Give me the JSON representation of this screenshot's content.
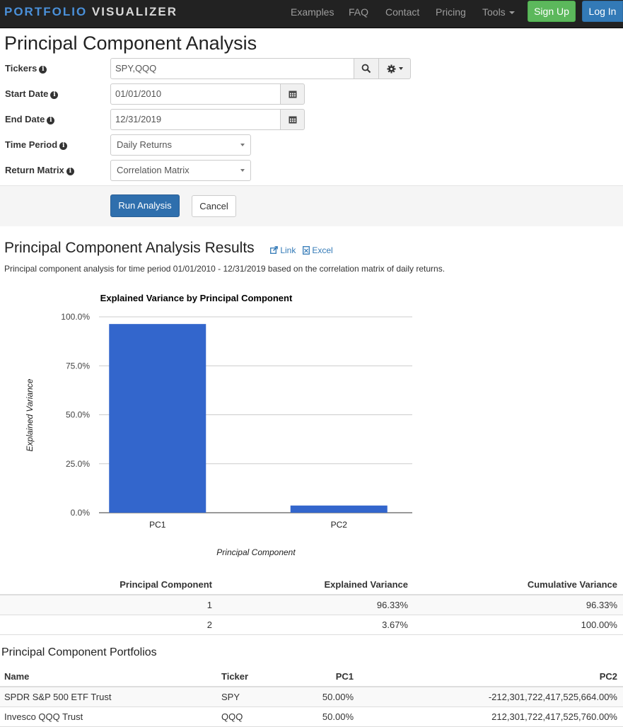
{
  "navbar": {
    "brand_part1": "PORTFOLIO",
    "brand_part2": "VISUALIZER",
    "links": [
      "Examples",
      "FAQ",
      "Contact",
      "Pricing",
      "Tools"
    ],
    "signup": "Sign Up",
    "login": "Log In",
    "colors": {
      "signup": "#5cb85c",
      "login": "#337ab7",
      "bar": "#222222"
    }
  },
  "page_title": "Principal Component Analysis",
  "form": {
    "tickers": {
      "label": "Tickers",
      "value": "SPY,QQQ"
    },
    "start_date": {
      "label": "Start Date",
      "value": "01/01/2010"
    },
    "end_date": {
      "label": "End Date",
      "value": "12/31/2019"
    },
    "time_period": {
      "label": "Time Period",
      "value": "Daily Returns"
    },
    "return_matrix": {
      "label": "Return Matrix",
      "value": "Correlation Matrix"
    },
    "run_button": "Run Analysis",
    "cancel_button": "Cancel",
    "icons": {
      "search": "search-icon",
      "settings": "gear-icon",
      "calendar": "calendar-icon",
      "info": "info-icon"
    }
  },
  "results": {
    "title": "Principal Component Analysis Results",
    "link_label": "Link",
    "excel_label": "Excel",
    "description": "Principal component analysis for time period 01/01/2010 - 12/31/2019 based on the correlation matrix of daily returns."
  },
  "chart_data": {
    "type": "bar",
    "title": "Explained Variance by Principal Component",
    "xlabel": "Principal Component",
    "ylabel": "Explained Variance",
    "categories": [
      "PC1",
      "PC2"
    ],
    "values": [
      96.33,
      3.67
    ],
    "ylim": [
      0,
      100
    ],
    "yticks": [
      0,
      25,
      50,
      75,
      100
    ],
    "ytick_labels": [
      "0.0%",
      "25.0%",
      "50.0%",
      "75.0%",
      "100.0%"
    ],
    "grid": true,
    "bar_color": "#3366cc"
  },
  "variance_table": {
    "headers": [
      "Principal Component",
      "Explained Variance",
      "Cumulative Variance"
    ],
    "rows": [
      [
        "1",
        "96.33%",
        "96.33%"
      ],
      [
        "2",
        "3.67%",
        "100.00%"
      ]
    ]
  },
  "portfolios": {
    "title": "Principal Component Portfolios",
    "headers": [
      "Name",
      "Ticker",
      "PC1",
      "PC2"
    ],
    "rows": [
      [
        "SPDR S&P 500 ETF Trust",
        "SPY",
        "50.00%",
        "-212,301,722,417,525,664.00%"
      ],
      [
        "Invesco QQQ Trust",
        "QQQ",
        "50.00%",
        "212,301,722,417,525,760.00%"
      ]
    ]
  }
}
